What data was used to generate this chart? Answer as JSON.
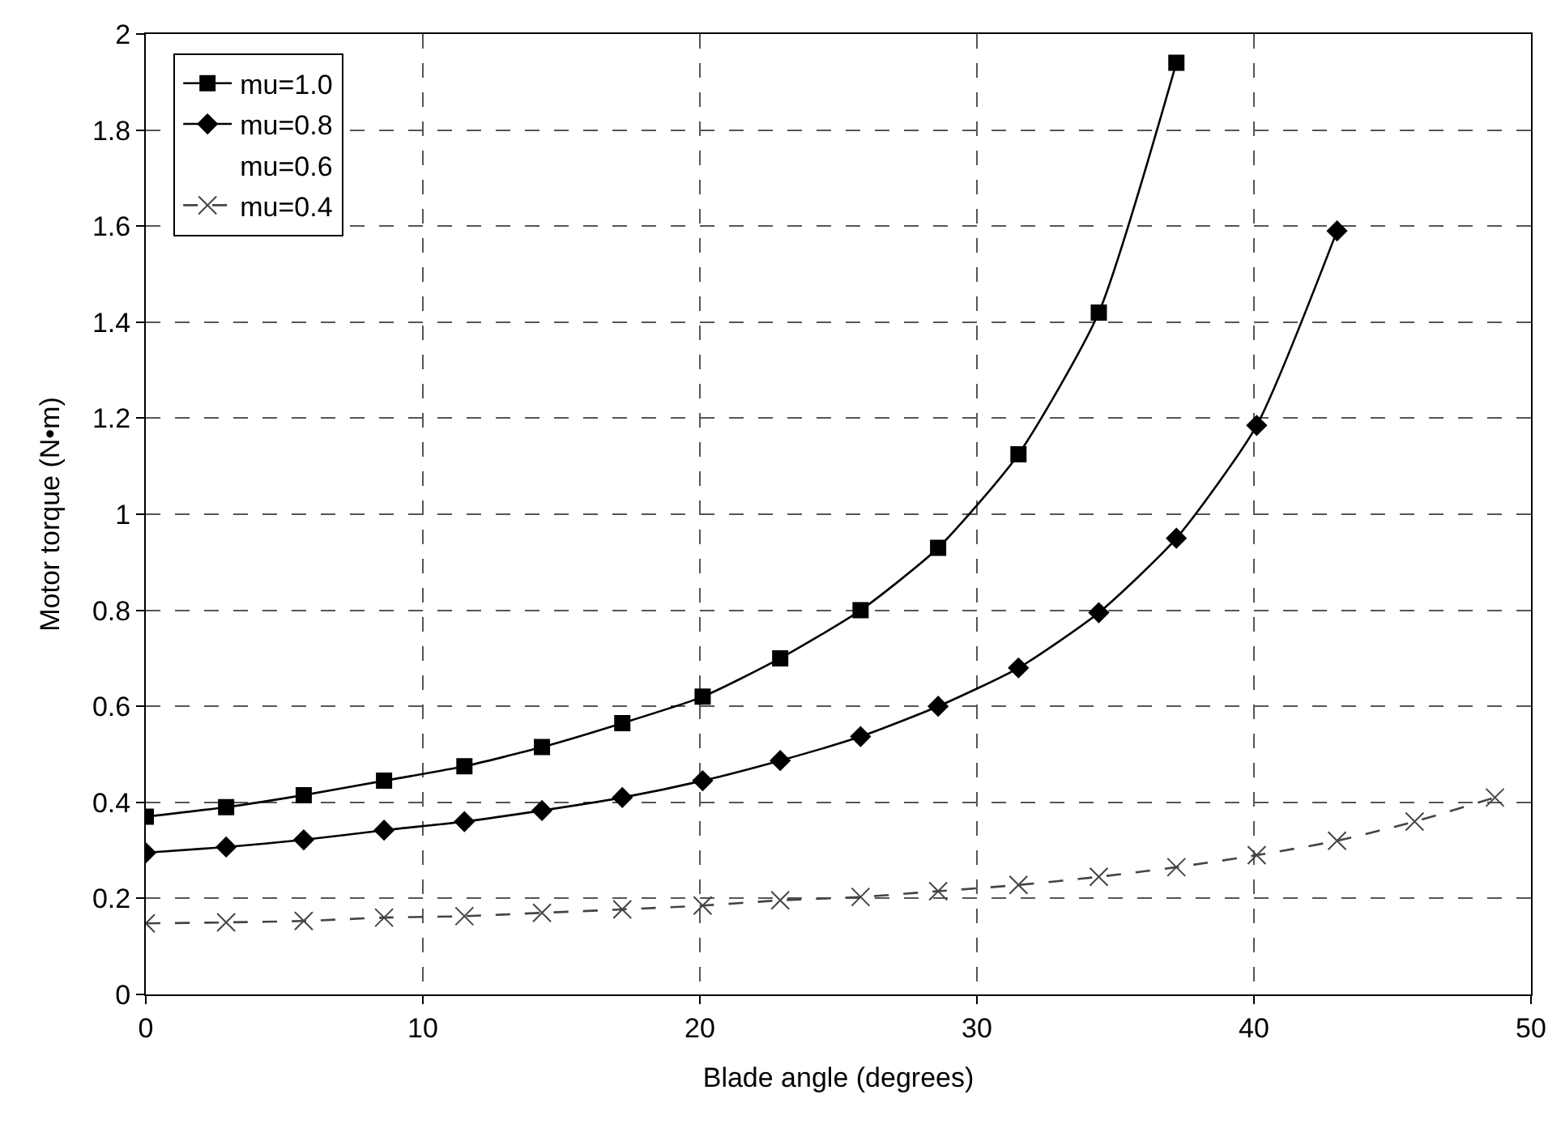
{
  "chart_data": {
    "type": "line",
    "xlabel": "Blade angle (degrees)",
    "ylabel": "Motor torque (N•m)",
    "x": [
      0,
      2.9,
      5.7,
      8.6,
      11.5,
      14.3,
      17.2,
      20.1,
      22.9,
      25.8,
      28.6,
      31.5,
      34.4,
      37.2,
      40.1,
      43.0,
      45.8,
      48.7
    ],
    "series": [
      {
        "name": "mu=1.0",
        "color": "#000000",
        "marker": "square",
        "line_style": "solid",
        "values": [
          0.37,
          0.39,
          0.415,
          0.445,
          0.475,
          0.515,
          0.565,
          0.62,
          0.7,
          0.8,
          0.93,
          1.125,
          1.42,
          1.94,
          null,
          null,
          null,
          null
        ]
      },
      {
        "name": "mu=0.8",
        "color": "#000000",
        "marker": "diamond",
        "line_style": "solid",
        "values": [
          0.295,
          0.307,
          0.322,
          0.342,
          0.36,
          0.383,
          0.41,
          0.445,
          0.487,
          0.537,
          0.6,
          0.68,
          0.795,
          0.95,
          1.185,
          1.59,
          null,
          null
        ]
      },
      {
        "name": "mu=0.6",
        "marker": "none",
        "line_style": "solid",
        "values": [
          null,
          null,
          null,
          null,
          null,
          null,
          null,
          null,
          null,
          null,
          null,
          null,
          null,
          null,
          null,
          null,
          null,
          null
        ]
      },
      {
        "name": "mu=0.4",
        "color": "#444444",
        "marker": "cross",
        "line_style": "dashed",
        "values": [
          0.148,
          0.15,
          0.153,
          0.16,
          0.163,
          0.17,
          0.177,
          0.185,
          0.196,
          0.203,
          0.215,
          0.228,
          0.245,
          0.265,
          0.29,
          0.32,
          0.36,
          0.41
        ]
      }
    ],
    "xlim": [
      0,
      50
    ],
    "xticks": [
      0,
      10,
      20,
      30,
      40,
      50
    ],
    "ylim": [
      0,
      2
    ],
    "yticks": [
      0,
      0.2,
      0.4,
      0.6,
      0.8,
      1,
      1.2,
      1.4,
      1.6,
      1.8,
      2
    ],
    "grid": true,
    "legend": "top left"
  }
}
